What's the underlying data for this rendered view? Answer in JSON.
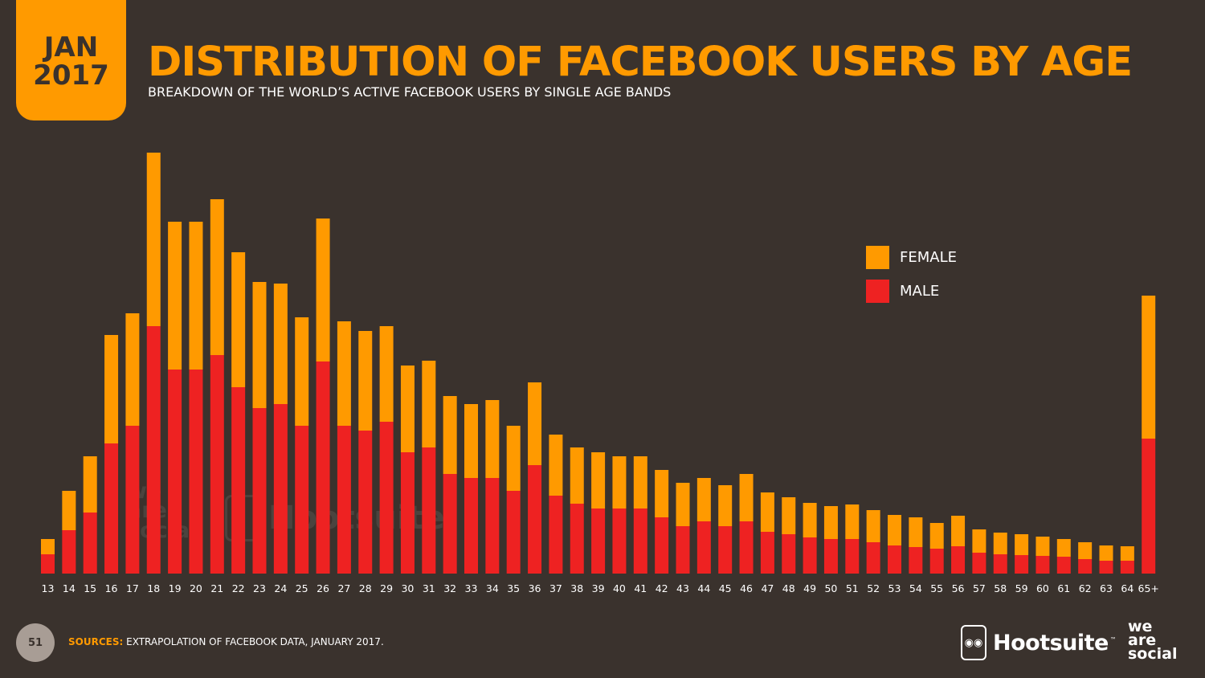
{
  "badge": {
    "month": "JAN",
    "year": "2017"
  },
  "title": "DISTRIBUTION OF FACEBOOK USERS BY AGE",
  "subtitle": "BREAKDOWN OF THE WORLD’S ACTIVE FACEBOOK USERS BY SINGLE AGE BANDS",
  "footer": {
    "page_number": "51",
    "sources_label": "SOURCES:",
    "sources_text": "EXTRAPOLATION OF FACEBOOK DATA, JANUARY 2017.",
    "logo_hootsuite": "Hootsuite",
    "logo_hootsuite_tm": "™",
    "logo_was_1": "we",
    "logo_was_2": "are",
    "logo_was_3": "social"
  },
  "watermarks": {
    "was_1": "we",
    "was_2": "are",
    "was_3": "social",
    "hootsuite": "Hootsuite"
  },
  "colors": {
    "female": "#ff9a00",
    "male": "#ee2222",
    "background": "#3a322d"
  },
  "chart_data": {
    "type": "bar",
    "stacked": true,
    "categories": [
      "13",
      "14",
      "15",
      "16",
      "17",
      "18",
      "19",
      "20",
      "21",
      "22",
      "23",
      "24",
      "25",
      "26",
      "27",
      "28",
      "29",
      "30",
      "31",
      "32",
      "33",
      "34",
      "35",
      "36",
      "37",
      "38",
      "39",
      "40",
      "41",
      "42",
      "43",
      "44",
      "45",
      "46",
      "47",
      "48",
      "49",
      "50",
      "51",
      "52",
      "53",
      "54",
      "55",
      "56",
      "57",
      "58",
      "59",
      "60",
      "61",
      "62",
      "63",
      "64",
      "65+"
    ],
    "series": [
      {
        "name": "MALE",
        "color": "#ee2222",
        "values": [
          24,
          54,
          76,
          162,
          184,
          308,
          254,
          254,
          272,
          232,
          206,
          211,
          184,
          264,
          184,
          178,
          189,
          151,
          157,
          124,
          119,
          119,
          103,
          135,
          97,
          87,
          81,
          81,
          81,
          70,
          59,
          65,
          59,
          65,
          52,
          49,
          45,
          43,
          43,
          39,
          35,
          33,
          31,
          34,
          26,
          24,
          23,
          22,
          21,
          18,
          16,
          16,
          168
        ]
      },
      {
        "name": "FEMALE",
        "color": "#ff9a00",
        "values": [
          19,
          49,
          70,
          135,
          140,
          216,
          184,
          184,
          194,
          168,
          157,
          150,
          135,
          178,
          130,
          124,
          119,
          108,
          108,
          97,
          92,
          97,
          81,
          103,
          76,
          70,
          70,
          65,
          65,
          59,
          54,
          54,
          51,
          59,
          49,
          46,
          43,
          41,
          43,
          40,
          38,
          37,
          32,
          38,
          29,
          27,
          26,
          24,
          22,
          21,
          19,
          18,
          178
        ]
      }
    ],
    "legend": [
      "FEMALE",
      "MALE"
    ],
    "legend_position": "right",
    "ylim": [
      0,
      530
    ],
    "grid": false,
    "axis_value_labels": false
  }
}
